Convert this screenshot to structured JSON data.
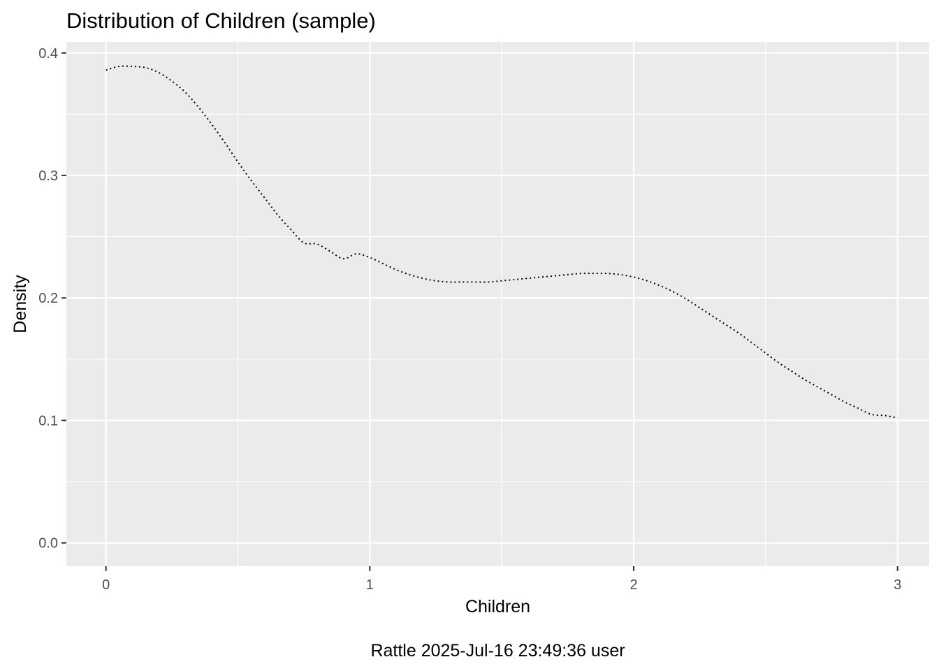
{
  "chart_data": {
    "type": "line",
    "title": "Distribution of Children (sample)",
    "xlabel": "Children",
    "ylabel": "Density",
    "caption": "Rattle 2025-Jul-16 23:49:36 user",
    "xlim": [
      -0.15,
      3.12
    ],
    "ylim": [
      -0.019,
      0.409
    ],
    "x_ticks": [
      0,
      1,
      2,
      3
    ],
    "x_tick_labels": [
      "0",
      "1",
      "2",
      "3"
    ],
    "y_ticks": [
      0.0,
      0.1,
      0.2,
      0.3,
      0.4
    ],
    "y_tick_labels": [
      "0.0",
      "0.1",
      "0.2",
      "0.3",
      "0.4"
    ],
    "grid": true,
    "background": "#EBEBEB",
    "grid_color": "#FFFFFF",
    "series": [
      {
        "line_style": "dotted",
        "color": "#000000",
        "x": [
          0.0,
          0.05,
          0.1,
          0.15,
          0.2,
          0.25,
          0.3,
          0.35,
          0.4,
          0.45,
          0.5,
          0.55,
          0.6,
          0.65,
          0.7,
          0.75,
          0.8,
          0.85,
          0.9,
          0.95,
          1.0,
          1.05,
          1.1,
          1.15,
          1.2,
          1.25,
          1.3,
          1.35,
          1.4,
          1.45,
          1.5,
          1.55,
          1.6,
          1.65,
          1.7,
          1.75,
          1.8,
          1.85,
          1.9,
          1.95,
          2.0,
          2.05,
          2.1,
          2.15,
          2.2,
          2.25,
          2.3,
          2.35,
          2.4,
          2.45,
          2.5,
          2.55,
          2.6,
          2.65,
          2.7,
          2.75,
          2.8,
          2.85,
          2.9,
          2.95,
          3.0
        ],
        "y": [
          0.386,
          0.389,
          0.389,
          0.388,
          0.384,
          0.377,
          0.368,
          0.356,
          0.342,
          0.327,
          0.311,
          0.296,
          0.282,
          0.268,
          0.256,
          0.245,
          0.244,
          0.238,
          0.232,
          0.236,
          0.233,
          0.228,
          0.223,
          0.219,
          0.216,
          0.214,
          0.213,
          0.213,
          0.213,
          0.213,
          0.214,
          0.215,
          0.216,
          0.217,
          0.218,
          0.219,
          0.22,
          0.22,
          0.22,
          0.219,
          0.217,
          0.214,
          0.21,
          0.205,
          0.199,
          0.192,
          0.185,
          0.178,
          0.171,
          0.163,
          0.155,
          0.147,
          0.14,
          0.133,
          0.127,
          0.121,
          0.115,
          0.11,
          0.105,
          0.104,
          0.102
        ]
      }
    ]
  }
}
